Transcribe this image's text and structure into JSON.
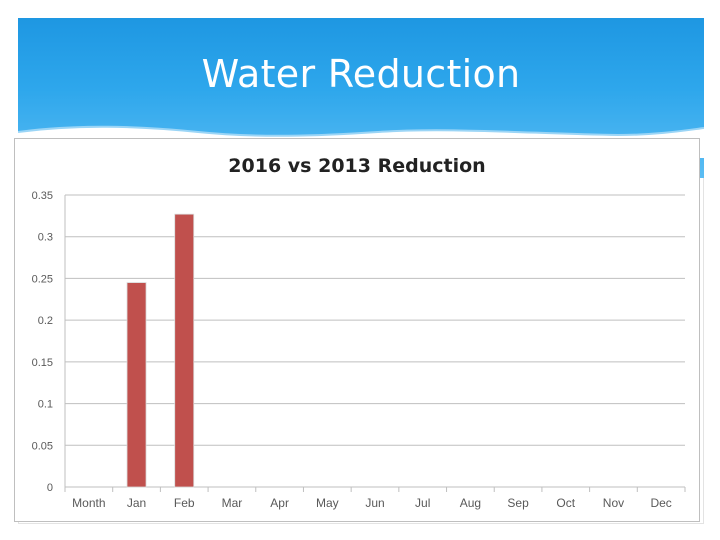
{
  "slide": {
    "title": "Water Reduction"
  },
  "chart_data": {
    "type": "bar",
    "title": "2016 vs 2013 Reduction",
    "xlabel": "",
    "ylabel": "",
    "categories": [
      "Month",
      "Jan",
      "Feb",
      "Mar",
      "Apr",
      "May",
      "Jun",
      "Jul",
      "Aug",
      "Sep",
      "Oct",
      "Nov",
      "Dec"
    ],
    "values": [
      null,
      0.245,
      0.327,
      null,
      null,
      null,
      null,
      null,
      null,
      null,
      null,
      null,
      null
    ],
    "ylim": [
      0,
      0.35
    ],
    "yticks": [
      0,
      0.05,
      0.1,
      0.15,
      0.2,
      0.25,
      0.3,
      0.35
    ],
    "ytick_labels": [
      "0",
      "0.05",
      "0.1",
      "0.15",
      "0.2",
      "0.25",
      "0.3",
      "0.35"
    ],
    "grid": true,
    "legend": "none",
    "bar_color": "#c0504d"
  },
  "colors": {
    "header": "#1e97e2",
    "title_text": "#ffffff",
    "grid": "#bfbfbf",
    "axis_text": "#595959"
  }
}
